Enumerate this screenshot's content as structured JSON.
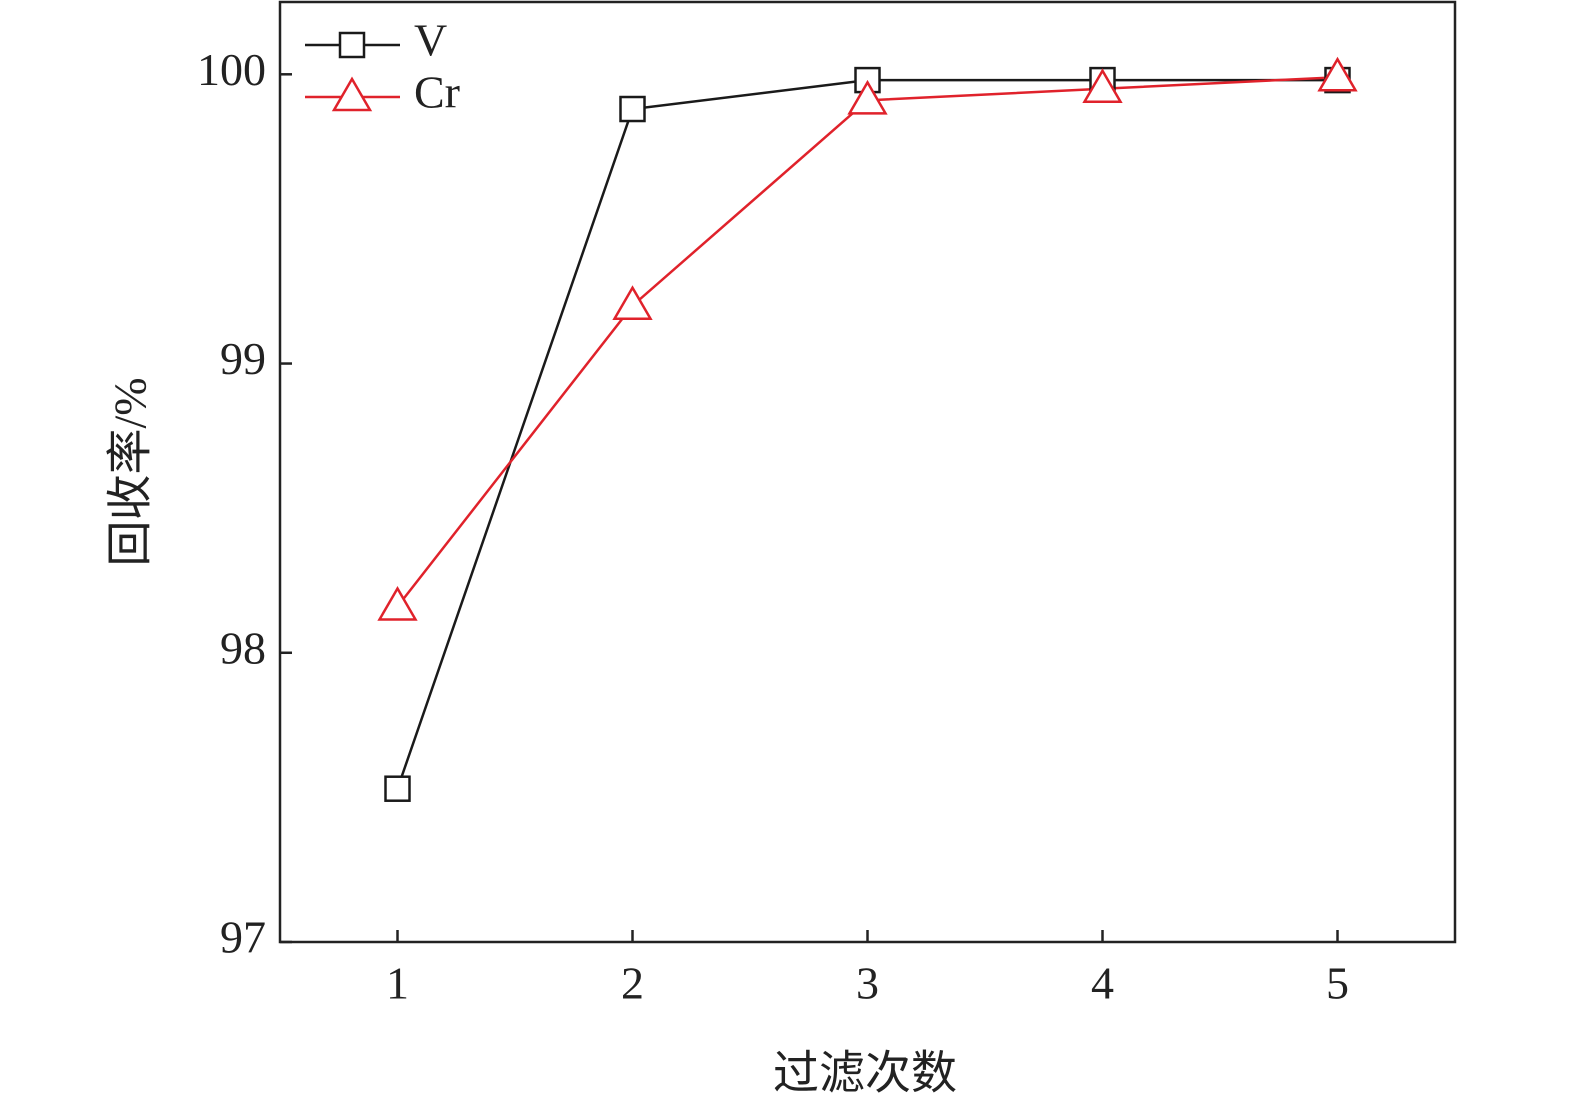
{
  "chart_data": {
    "type": "line",
    "x_label": "过滤次数",
    "y_label": "回收率/%",
    "x": [
      1,
      2,
      3,
      4,
      5
    ],
    "series": [
      {
        "name": "V",
        "color": "#1a1a1a",
        "marker": "square",
        "values": [
          97.53,
          99.88,
          99.98,
          99.98,
          99.98
        ]
      },
      {
        "name": "Cr",
        "color": "#e0222b",
        "marker": "triangle",
        "values": [
          98.16,
          99.2,
          99.91,
          99.95,
          99.99
        ]
      }
    ],
    "xlim": [
      0.5,
      5.5
    ],
    "xticks": [
      1,
      2,
      3,
      4,
      5
    ],
    "ylim": [
      97,
      100.25
    ],
    "yticks": [
      97,
      98,
      99,
      100
    ],
    "legend": "upper-left",
    "grid": false
  }
}
